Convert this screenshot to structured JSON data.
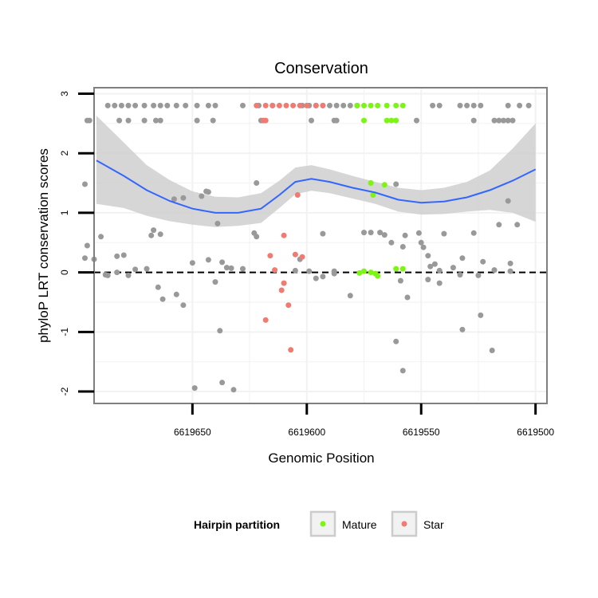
{
  "chart_data": {
    "type": "scatter",
    "title": "Conservation",
    "xlabel": "Genomic Position",
    "ylabel": "phyloP LRT conservation scores",
    "xlim": [
      6619693,
      6619495
    ],
    "ylim": [
      -2.2,
      3.1
    ],
    "x_reversed": true,
    "x_ticks": [
      6619650,
      6619600,
      6619550,
      6619500
    ],
    "x_tick_labels": [
      "6619650",
      "6619600",
      "6619550",
      "6619500"
    ],
    "y_ticks": [
      -2,
      -1,
      0,
      1,
      2,
      3
    ],
    "y_tick_labels": [
      "-2",
      "-1",
      "0",
      "1",
      "2",
      "3"
    ],
    "grid": true,
    "reference_line": {
      "y": 0,
      "style": "dashed"
    },
    "colors": {
      "Other": "#999999",
      "Mature": "#7cf514",
      "Star": "#f07b72",
      "smooth": "#3366ff",
      "ribbon": "#cccccc"
    },
    "legend": {
      "title": "Hairpin partition",
      "position": "bottom",
      "entries": [
        {
          "label": "Mature",
          "color": "#7cf514"
        },
        {
          "label": "Star",
          "color": "#f07b72"
        }
      ]
    },
    "series": [
      {
        "name": "Other",
        "points": [
          [
            6619687,
            2.8
          ],
          [
            6619684,
            2.8
          ],
          [
            6619681,
            2.8
          ],
          [
            6619678,
            2.8
          ],
          [
            6619675,
            2.8
          ],
          [
            6619671,
            2.8
          ],
          [
            6619667,
            2.8
          ],
          [
            6619664,
            2.8
          ],
          [
            6619661,
            2.8
          ],
          [
            6619657,
            2.8
          ],
          [
            6619653,
            2.8
          ],
          [
            6619648,
            2.8
          ],
          [
            6619643,
            2.8
          ],
          [
            6619640,
            2.8
          ],
          [
            6619628,
            2.8
          ],
          [
            6619621,
            2.8
          ],
          [
            6619615,
            2.8
          ],
          [
            6619602,
            2.8
          ],
          [
            6619599,
            2.8
          ],
          [
            6619596,
            2.8
          ],
          [
            6619593,
            2.8
          ],
          [
            6619590,
            2.8
          ],
          [
            6619587,
            2.8
          ],
          [
            6619584,
            2.8
          ],
          [
            6619581,
            2.8
          ],
          [
            6619578,
            2.8
          ],
          [
            6619545,
            2.8
          ],
          [
            6619542,
            2.8
          ],
          [
            6619533,
            2.8
          ],
          [
            6619530,
            2.8
          ],
          [
            6619527,
            2.8
          ],
          [
            6619524,
            2.8
          ],
          [
            6619512,
            2.8
          ],
          [
            6619507,
            2.8
          ],
          [
            6619503,
            2.8
          ],
          [
            6619696,
            2.55
          ],
          [
            6619695,
            2.55
          ],
          [
            6619682,
            2.55
          ],
          [
            6619678,
            2.55
          ],
          [
            6619671,
            2.55
          ],
          [
            6619666,
            2.55
          ],
          [
            6619664,
            2.55
          ],
          [
            6619648,
            2.55
          ],
          [
            6619641,
            2.55
          ],
          [
            6619620,
            2.55
          ],
          [
            6619598,
            2.55
          ],
          [
            6619588,
            2.55
          ],
          [
            6619587,
            2.55
          ],
          [
            6619552,
            2.55
          ],
          [
            6619527,
            2.55
          ],
          [
            6619518,
            2.55
          ],
          [
            6619516,
            2.55
          ],
          [
            6619514,
            2.55
          ],
          [
            6619512,
            2.55
          ],
          [
            6619510,
            2.55
          ],
          [
            6619697,
            1.48
          ],
          [
            6619622,
            1.5
          ],
          [
            6619654,
            1.25
          ],
          [
            6619646,
            1.28
          ],
          [
            6619644,
            1.36
          ],
          [
            6619643,
            1.35
          ],
          [
            6619561,
            1.48
          ],
          [
            6619512,
            1.2
          ],
          [
            6619639,
            0.82
          ],
          [
            6619623,
            0.66
          ],
          [
            6619622,
            0.6
          ],
          [
            6619593,
            0.65
          ],
          [
            6619575,
            0.67
          ],
          [
            6619572,
            0.67
          ],
          [
            6619568,
            0.67
          ],
          [
            6619566,
            0.63
          ],
          [
            6619563,
            0.5
          ],
          [
            6619558,
            0.43
          ],
          [
            6619557,
            0.62
          ],
          [
            6619551,
            0.66
          ],
          [
            6619550,
            0.5
          ],
          [
            6619549,
            0.42
          ],
          [
            6619547,
            0.28
          ],
          [
            6619544,
            0.14
          ],
          [
            6619540,
            0.65
          ],
          [
            6619527,
            0.66
          ],
          [
            6619523,
            0.18
          ],
          [
            6619516,
            0.8
          ],
          [
            6619511,
            0.15
          ],
          [
            6619508,
            0.8
          ],
          [
            6619696,
            0.45
          ],
          [
            6619697,
            0.24
          ],
          [
            6619693,
            0.22
          ],
          [
            6619690,
            0.6
          ],
          [
            6619683,
            0.27
          ],
          [
            6619680,
            0.29
          ],
          [
            6619668,
            0.62
          ],
          [
            6619667,
            0.71
          ],
          [
            6619664,
            0.64
          ],
          [
            6619658,
            1.23
          ],
          [
            6619650,
            0.16
          ],
          [
            6619643,
            0.21
          ],
          [
            6619637,
            0.17
          ],
          [
            6619635,
            0.08
          ],
          [
            6619633,
            0.07
          ],
          [
            6619628,
            0.06
          ],
          [
            6619599,
            0.02
          ],
          [
            6619603,
            0.22
          ],
          [
            6619588,
            -0.02
          ],
          [
            6619605,
            0.03
          ],
          [
            6619546,
            0.1
          ],
          [
            6619542,
            0.03
          ],
          [
            6619536,
            0.08
          ],
          [
            6619533,
            -0.04
          ],
          [
            6619532,
            0.24
          ],
          [
            6619525,
            -0.05
          ],
          [
            6619518,
            0.04
          ],
          [
            6619511,
            0.02
          ],
          [
            6619688,
            -0.04
          ],
          [
            6619687,
            -0.05
          ],
          [
            6619683,
            0.0
          ],
          [
            6619678,
            -0.05
          ],
          [
            6619675,
            0.05
          ],
          [
            6619670,
            0.06
          ],
          [
            6619665,
            -0.25
          ],
          [
            6619663,
            -0.45
          ],
          [
            6619657,
            -0.37
          ],
          [
            6619654,
            -0.55
          ],
          [
            6619640,
            -0.16
          ],
          [
            6619596,
            -0.1
          ],
          [
            6619593,
            -0.07
          ],
          [
            6619588,
            0.02
          ],
          [
            6619581,
            -0.39
          ],
          [
            6619559,
            -0.14
          ],
          [
            6619556,
            -0.42
          ],
          [
            6619547,
            -0.12
          ],
          [
            6619542,
            -0.18
          ],
          [
            6619638,
            -0.98
          ],
          [
            6619561,
            -1.16
          ],
          [
            6619558,
            -1.65
          ],
          [
            6619532,
            -0.96
          ],
          [
            6619524,
            -0.72
          ],
          [
            6619519,
            -1.31
          ],
          [
            6619649,
            -1.94
          ],
          [
            6619637,
            -1.85
          ],
          [
            6619632,
            -1.97
          ]
        ]
      },
      {
        "name": "Star",
        "points": [
          [
            6619622,
            2.8
          ],
          [
            6619618,
            2.8
          ],
          [
            6619615,
            2.8
          ],
          [
            6619612,
            2.8
          ],
          [
            6619609,
            2.8
          ],
          [
            6619606,
            2.8
          ],
          [
            6619603,
            2.8
          ],
          [
            6619600,
            2.8
          ],
          [
            6619596,
            2.8
          ],
          [
            6619593,
            2.8
          ],
          [
            6619619,
            2.55
          ],
          [
            6619618,
            2.55
          ],
          [
            6619604,
            1.3
          ],
          [
            6619610,
            0.62
          ],
          [
            6619605,
            0.3
          ],
          [
            6619602,
            0.26
          ],
          [
            6619616,
            0.28
          ],
          [
            6619614,
            0.04
          ],
          [
            6619610,
            -0.18
          ],
          [
            6619611,
            -0.3
          ],
          [
            6619608,
            -0.55
          ],
          [
            6619618,
            -0.8
          ],
          [
            6619607,
            -1.3
          ]
        ]
      },
      {
        "name": "Mature",
        "points": [
          [
            6619578,
            2.8
          ],
          [
            6619575,
            2.8
          ],
          [
            6619572,
            2.8
          ],
          [
            6619569,
            2.8
          ],
          [
            6619565,
            2.8
          ],
          [
            6619561,
            2.8
          ],
          [
            6619558,
            2.8
          ],
          [
            6619575,
            2.55
          ],
          [
            6619565,
            2.55
          ],
          [
            6619563,
            2.55
          ],
          [
            6619561,
            2.55
          ],
          [
            6619572,
            1.5
          ],
          [
            6619571,
            1.3
          ],
          [
            6619566,
            1.47
          ],
          [
            6619577,
            -0.01
          ],
          [
            6619575,
            0.02
          ],
          [
            6619572,
            0.0
          ],
          [
            6619570,
            -0.02
          ],
          [
            6619569,
            -0.06
          ],
          [
            6619561,
            0.06
          ],
          [
            6619558,
            0.06
          ]
        ]
      }
    ],
    "smooth": {
      "method": "loess",
      "x": [
        6619692,
        6619680,
        6619670,
        6619660,
        6619650,
        6619640,
        6619630,
        6619620,
        6619612,
        6619605,
        6619598,
        6619590,
        6619580,
        6619570,
        6619560,
        6619550,
        6619540,
        6619530,
        6619520,
        6619510,
        6619500
      ],
      "y": [
        1.88,
        1.62,
        1.38,
        1.2,
        1.07,
        1.0,
        1.0,
        1.07,
        1.3,
        1.52,
        1.57,
        1.52,
        1.42,
        1.34,
        1.22,
        1.17,
        1.19,
        1.26,
        1.38,
        1.54,
        1.73
      ],
      "ymin": [
        1.15,
        1.08,
        0.95,
        0.86,
        0.8,
        0.76,
        0.78,
        0.83,
        1.08,
        1.31,
        1.37,
        1.33,
        1.24,
        1.15,
        1.02,
        0.97,
        0.98,
        1.02,
        1.05,
        1.0,
        0.85
      ],
      "ymax": [
        2.63,
        2.18,
        1.8,
        1.55,
        1.36,
        1.27,
        1.26,
        1.33,
        1.54,
        1.76,
        1.8,
        1.73,
        1.62,
        1.52,
        1.42,
        1.38,
        1.42,
        1.52,
        1.71,
        2.08,
        2.5
      ]
    }
  }
}
